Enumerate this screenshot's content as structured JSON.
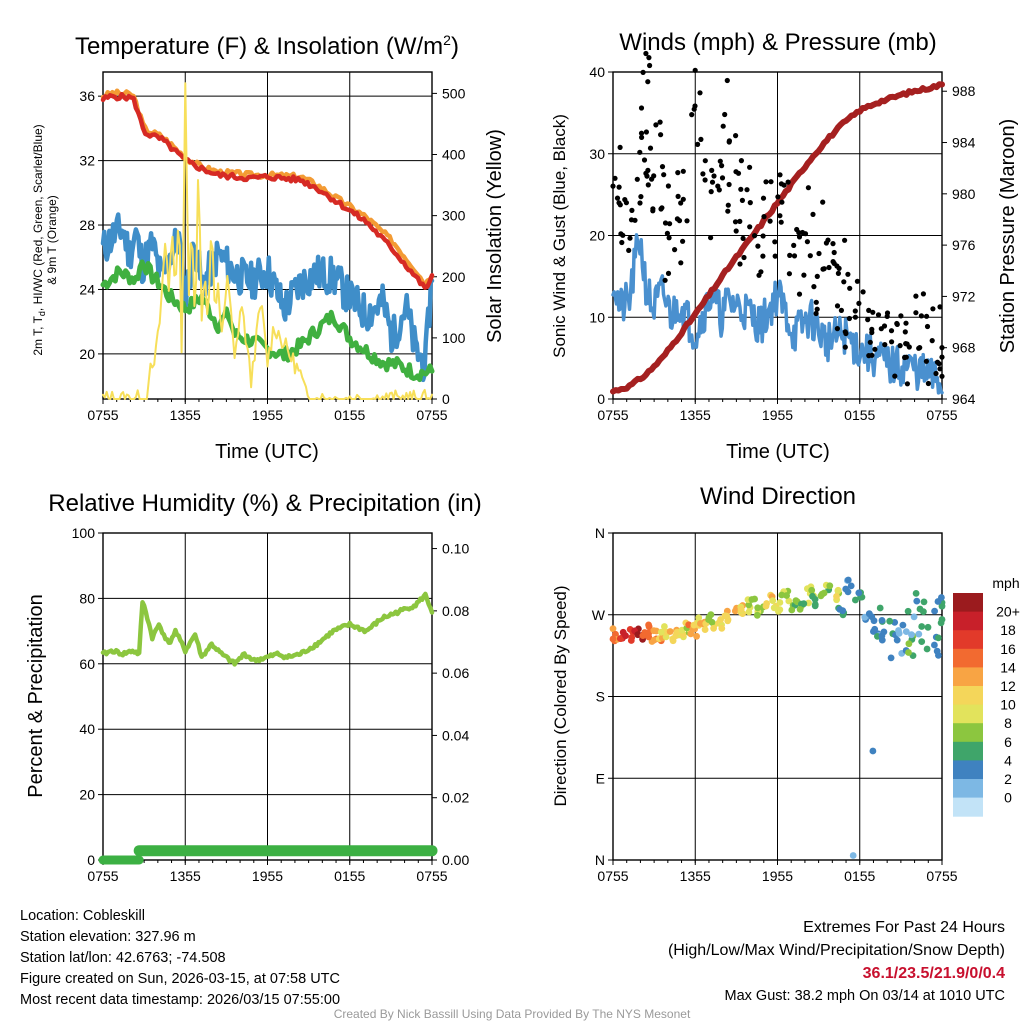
{
  "chart_data": [
    {
      "type": "line",
      "title": "Temperature (F) & Insolation (W/m²)",
      "title_main": "Temperature (F) & Insolation (W/m",
      "title_sup": "2",
      "title_close": ")",
      "xlabel": "Time (UTC)",
      "ylabel": "2m T, Td, HI/WC (Red, Green, Scarlet/Blue) & 9m T (Orange)",
      "ylabel_line1": "2m T, T",
      "ylabel_sub": "d",
      "ylabel_line1_rest": ", HI/WC (Red, Green, Scarlet/Blue)",
      "ylabel_line2": "& 9m T (Orange)",
      "y2label": "Solar Insolation (Yellow)",
      "xticks": [
        "0755",
        "1355",
        "1955",
        "0155",
        "0755"
      ],
      "ylim": [
        17.2,
        37.5
      ],
      "yticks": [
        "36",
        "32",
        "28",
        "24",
        "20"
      ],
      "y2lim": [
        0,
        535
      ],
      "y2ticks": [
        "500",
        "400",
        "300",
        "200",
        "100",
        "0"
      ],
      "series": [
        {
          "name": "9m T",
          "color": "#f39b34",
          "t": [
            0,
            0.03,
            0.09,
            0.1,
            0.12,
            0.13,
            0.18,
            0.25,
            0.3,
            0.35,
            0.45,
            0.5,
            0.6,
            0.65,
            0.7,
            0.8,
            0.88,
            0.95,
            0.98,
            1
          ],
          "values": [
            36,
            36.2,
            36.1,
            35.6,
            34.3,
            33.9,
            33.5,
            32.2,
            31.6,
            31.3,
            31.1,
            31.1,
            31,
            30.5,
            29.8,
            28.5,
            27,
            25.2,
            24.3,
            25
          ]
        },
        {
          "name": "2m T",
          "color": "#d62a24",
          "t": [
            0,
            0.03,
            0.09,
            0.1,
            0.12,
            0.13,
            0.18,
            0.25,
            0.3,
            0.35,
            0.45,
            0.5,
            0.6,
            0.65,
            0.7,
            0.8,
            0.88,
            0.95,
            0.98,
            1
          ],
          "values": [
            35.8,
            36,
            35.9,
            35.4,
            34.1,
            33.7,
            33.3,
            32,
            31.5,
            31.1,
            30.9,
            31,
            30.8,
            30.3,
            29.6,
            28.2,
            26.5,
            24.8,
            24,
            24.8
          ]
        },
        {
          "name": "Dew point",
          "color": "#40b040",
          "t": [
            0,
            0.05,
            0.1,
            0.12,
            0.15,
            0.18,
            0.2,
            0.25,
            0.3,
            0.35,
            0.38,
            0.4,
            0.45,
            0.5,
            0.55,
            0.6,
            0.65,
            0.7,
            0.75,
            0.8,
            0.85,
            0.9,
            0.95,
            1
          ],
          "values": [
            24.3,
            25.1,
            24.6,
            25.8,
            24.8,
            24.2,
            23.6,
            22.8,
            23.5,
            21.8,
            22.5,
            21.2,
            20.8,
            20.3,
            19.9,
            20.5,
            21.5,
            22.4,
            21,
            20.2,
            19.5,
            19.3,
            18.8,
            18.9
          ]
        },
        {
          "name": "HI/WC",
          "color": "#3f8ec9",
          "t": [
            0,
            0.03,
            0.06,
            0.08,
            0.1,
            0.12,
            0.15,
            0.18,
            0.2,
            0.23,
            0.25,
            0.28,
            0.3,
            0.35,
            0.4,
            0.45,
            0.5,
            0.55,
            0.6,
            0.65,
            0.7,
            0.75,
            0.8,
            0.85,
            0.88,
            0.92,
            0.95,
            0.98,
            1
          ],
          "values": [
            26.5,
            27.3,
            27.8,
            26.2,
            27.5,
            25.5,
            26.8,
            24.5,
            26,
            27.2,
            23.5,
            26.8,
            24.2,
            26.2,
            25,
            24.5,
            25.2,
            22.8,
            24.4,
            25,
            24.8,
            23.5,
            22.5,
            23.2,
            21,
            23,
            20.2,
            19.3,
            25
          ]
        },
        {
          "name": "Solar Insolation",
          "color": "#f7df5a",
          "axis": "y2",
          "t": [
            0,
            0.13,
            0.135,
            0.14,
            0.15,
            0.17,
            0.19,
            0.2,
            0.21,
            0.22,
            0.23,
            0.24,
            0.25,
            0.26,
            0.27,
            0.28,
            0.29,
            0.3,
            0.31,
            0.32,
            0.33,
            0.34,
            0.35,
            0.36,
            0.38,
            0.4,
            0.42,
            0.45,
            0.48,
            0.5,
            0.52,
            0.55,
            0.6,
            0.62,
            1
          ],
          "values": [
            0,
            0,
            10,
            50,
            40,
            110,
            260,
            180,
            290,
            150,
            330,
            60,
            520,
            150,
            300,
            120,
            380,
            140,
            210,
            120,
            300,
            130,
            180,
            110,
            200,
            60,
            160,
            30,
            160,
            60,
            120,
            90,
            40,
            0,
            0
          ]
        }
      ]
    },
    {
      "type": "scatter",
      "title": "Winds (mph) & Pressure (mb)",
      "xlabel": "Time (UTC)",
      "ylabel": "Sonic Wind & Gust (Blue, Black)",
      "y2label": "Station Pressure (Maroon)",
      "xticks": [
        "0755",
        "1355",
        "1955",
        "0155",
        "0755"
      ],
      "ylim": [
        0,
        40
      ],
      "yticks": [
        "40",
        "30",
        "20",
        "10",
        "0"
      ],
      "y2lim": [
        964,
        989.5
      ],
      "y2ticks": [
        "988",
        "984",
        "980",
        "976",
        "972",
        "968",
        "964"
      ],
      "series": [
        {
          "name": "Sonic Wind",
          "color": "#4a90cf",
          "t": [
            0,
            0.02,
            0.05,
            0.08,
            0.1,
            0.12,
            0.15,
            0.18,
            0.2,
            0.25,
            0.3,
            0.33,
            0.35,
            0.4,
            0.45,
            0.5,
            0.55,
            0.6,
            0.65,
            0.7,
            0.75,
            0.8,
            0.85,
            0.9,
            0.95,
            1
          ],
          "values": [
            15,
            11,
            12,
            20,
            14,
            11,
            13,
            10,
            12,
            8,
            13,
            10,
            12,
            11,
            9,
            13,
            8,
            10,
            7,
            8,
            6,
            5,
            4,
            4,
            3,
            2
          ]
        },
        {
          "name": "Gust",
          "color": "#000000",
          "t": [
            0.01,
            0.03,
            0.05,
            0.07,
            0.09,
            0.1,
            0.11,
            0.12,
            0.14,
            0.16,
            0.18,
            0.2,
            0.22,
            0.25,
            0.27,
            0.3,
            0.32,
            0.35,
            0.36,
            0.38,
            0.4,
            0.42,
            0.45,
            0.47,
            0.5,
            0.52,
            0.55,
            0.57,
            0.6,
            0.62,
            0.64,
            0.66,
            0.68,
            0.7,
            0.72,
            0.75,
            0.78,
            0.8,
            0.82,
            0.85,
            0.88,
            0.9,
            0.93,
            0.95,
            0.98,
            1
          ],
          "values": [
            27,
            22,
            21,
            26,
            33,
            38,
            29,
            24,
            31,
            19,
            22,
            26,
            21,
            37,
            28,
            24,
            27,
            35,
            22,
            29,
            20,
            24,
            18,
            23,
            21,
            26,
            19,
            17,
            22,
            14,
            20,
            15,
            13,
            18,
            10,
            12,
            8,
            9,
            11,
            7,
            8,
            6,
            9,
            6,
            7,
            5
          ]
        },
        {
          "name": "Station Pressure",
          "color": "#a52020",
          "axis": "y2",
          "t": [
            0,
            0.05,
            0.1,
            0.15,
            0.2,
            0.25,
            0.3,
            0.35,
            0.4,
            0.45,
            0.5,
            0.55,
            0.6,
            0.65,
            0.7,
            0.75,
            0.8,
            0.85,
            0.9,
            0.95,
            1
          ],
          "values": [
            964.6,
            965,
            965.9,
            967.2,
            968.9,
            970.6,
            972.4,
            974.2,
            975.9,
            977.6,
            979.3,
            981,
            982.7,
            984.2,
            985.5,
            986.5,
            987.1,
            987.5,
            987.9,
            988.2,
            988.5
          ]
        }
      ]
    },
    {
      "type": "line",
      "title": "Relative Humidity (%) & Precipitation (in)",
      "xlabel": "",
      "ylabel": "Percent & Precipitation",
      "xticks": [
        "0755",
        "1355",
        "1955",
        "0155",
        "0755"
      ],
      "ylim": [
        0,
        100
      ],
      "yticks": [
        "100",
        "80",
        "60",
        "40",
        "20",
        "0"
      ],
      "y2lim": [
        0,
        0.105
      ],
      "y2ticks": [
        "0.10",
        "0.08",
        "0.06",
        "0.04",
        "0.02",
        "0.00"
      ],
      "series": [
        {
          "name": "Relative Humidity",
          "color": "#8cc63f",
          "t": [
            0,
            0.03,
            0.06,
            0.09,
            0.11,
            0.12,
            0.13,
            0.15,
            0.17,
            0.2,
            0.22,
            0.25,
            0.28,
            0.3,
            0.33,
            0.36,
            0.4,
            0.43,
            0.46,
            0.5,
            0.53,
            0.56,
            0.6,
            0.65,
            0.7,
            0.75,
            0.8,
            0.85,
            0.9,
            0.95,
            0.98,
            1
          ],
          "values": [
            63,
            64,
            63,
            64,
            63,
            79,
            76,
            68,
            72,
            66,
            70,
            64,
            69,
            62,
            66,
            63,
            60,
            63,
            61,
            62,
            63,
            62,
            63,
            66,
            70,
            72,
            70,
            74,
            76,
            78,
            81,
            76
          ]
        },
        {
          "name": "Precipitation",
          "color": "#3cb043",
          "axis": "y2",
          "t": [
            0,
            0.1,
            0.11,
            1
          ],
          "values": [
            0,
            0,
            0.003,
            0.003
          ]
        }
      ]
    },
    {
      "type": "scatter",
      "title": "Wind Direction",
      "xlabel": "",
      "ylabel": "Direction (Colored By Speed)",
      "xticks": [
        "0755",
        "1355",
        "1955",
        "0155",
        "0755"
      ],
      "ylim": [
        0,
        360
      ],
      "yticks": [
        "N",
        "W",
        "S",
        "E",
        "N"
      ],
      "legend_title": "mph",
      "legend_labels": [
        "20+",
        "18",
        "16",
        "14",
        "12",
        "10",
        "8",
        "6",
        "4",
        "2",
        "0"
      ],
      "legend_colors": [
        "#9b1b1e",
        "#c8202a",
        "#e23a2a",
        "#f26a30",
        "#f8a444",
        "#f4d65a",
        "#e2e35c",
        "#8cc63f",
        "#3fa56a",
        "#3f82c0",
        "#7db8e4",
        "#c2e3f7"
      ],
      "series": [
        {
          "name": "direction",
          "t": [
            0.01,
            0.03,
            0.05,
            0.08,
            0.1,
            0.12,
            0.14,
            0.16,
            0.18,
            0.2,
            0.22,
            0.24,
            0.26,
            0.28,
            0.3,
            0.32,
            0.35,
            0.38,
            0.4,
            0.42,
            0.45,
            0.48,
            0.5,
            0.52,
            0.55,
            0.58,
            0.6,
            0.62,
            0.65,
            0.68,
            0.7,
            0.72,
            0.75,
            0.78,
            0.8,
            0.82,
            0.85,
            0.88,
            0.9,
            0.92,
            0.95,
            0.98,
            1
          ],
          "values": [
            248,
            250,
            247,
            249,
            252,
            246,
            245,
            252,
            248,
            250,
            255,
            253,
            260,
            258,
            265,
            258,
            270,
            278,
            272,
            282,
            276,
            285,
            279,
            290,
            281,
            276,
            294,
            286,
            299,
            290,
            272,
            302,
            289,
            268,
            248,
            262,
            240,
            230,
            255,
            275,
            260,
            248,
            270
          ],
          "speeds": [
            13,
            16,
            17,
            20,
            14,
            13,
            12,
            9,
            11,
            10,
            8,
            12,
            9,
            11,
            7,
            9,
            10,
            11,
            8,
            6,
            7,
            10,
            8,
            7,
            5,
            6,
            7,
            4,
            6,
            8,
            3,
            2,
            3,
            2,
            2,
            3,
            3,
            1,
            4,
            2,
            3,
            2,
            3
          ]
        }
      ]
    }
  ],
  "info": {
    "location": "Location: Cobleskill",
    "elevation": "Station elevation: 327.96 m",
    "latlon": "Station lat/lon: 42.6763; -74.508",
    "created": "Figure created on Sun, 2026-03-15, at 07:58 UTC",
    "timestamp": "Most recent data timestamp: 2026/03/15 07:55:00"
  },
  "extremes": {
    "heading": "Extremes For Past 24 Hours",
    "subheading": "(High/Low/Max Wind/Precipitation/Snow Depth)",
    "values": "36.1/23.5/21.9/0/0.4",
    "max_gust": "Max Gust: 38.2 mph On 03/14 at 1010 UTC"
  },
  "credit": "Created By Nick Bassill Using Data Provided By The NYS Mesonet"
}
